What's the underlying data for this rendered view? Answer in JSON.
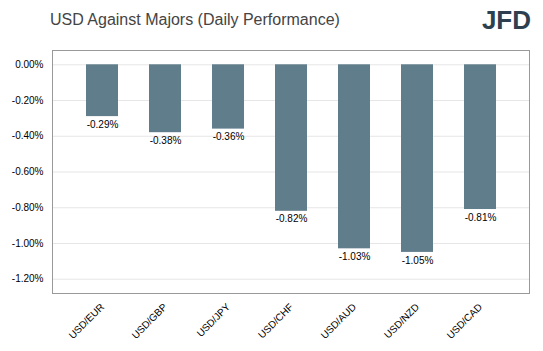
{
  "chart_data": {
    "type": "bar",
    "title": "USD Against Majors (Daily Performance)",
    "categories": [
      "USD/EUR",
      "USD/GBP",
      "USD/JPY",
      "USD/CHF",
      "USD/AUD",
      "USD/NZD",
      "USD/CAD"
    ],
    "values": [
      -0.29,
      -0.38,
      -0.36,
      -0.82,
      -1.03,
      -1.05,
      -0.81
    ],
    "value_labels": [
      "-0.29%",
      "-0.38%",
      "-0.36%",
      "-0.82%",
      "-1.03%",
      "-1.05%",
      "-0.81%"
    ],
    "data_labels": true,
    "color": "#607d8b",
    "ylim": [
      -1.28,
      0.08
    ],
    "yticks": [
      {
        "value": 0.0,
        "label": "0.00%"
      },
      {
        "value": -0.2,
        "label": "-0.20%"
      },
      {
        "value": -0.4,
        "label": "-0.40%"
      },
      {
        "value": -0.6,
        "label": "-0.60%"
      },
      {
        "value": -0.8,
        "label": "-0.80%"
      },
      {
        "value": -1.0,
        "label": "-1.00%"
      },
      {
        "value": -1.2,
        "label": "-1.20%"
      }
    ],
    "grid": true,
    "annotations": [
      {
        "text": "JFD",
        "color": "#2e3f4f"
      }
    ]
  }
}
